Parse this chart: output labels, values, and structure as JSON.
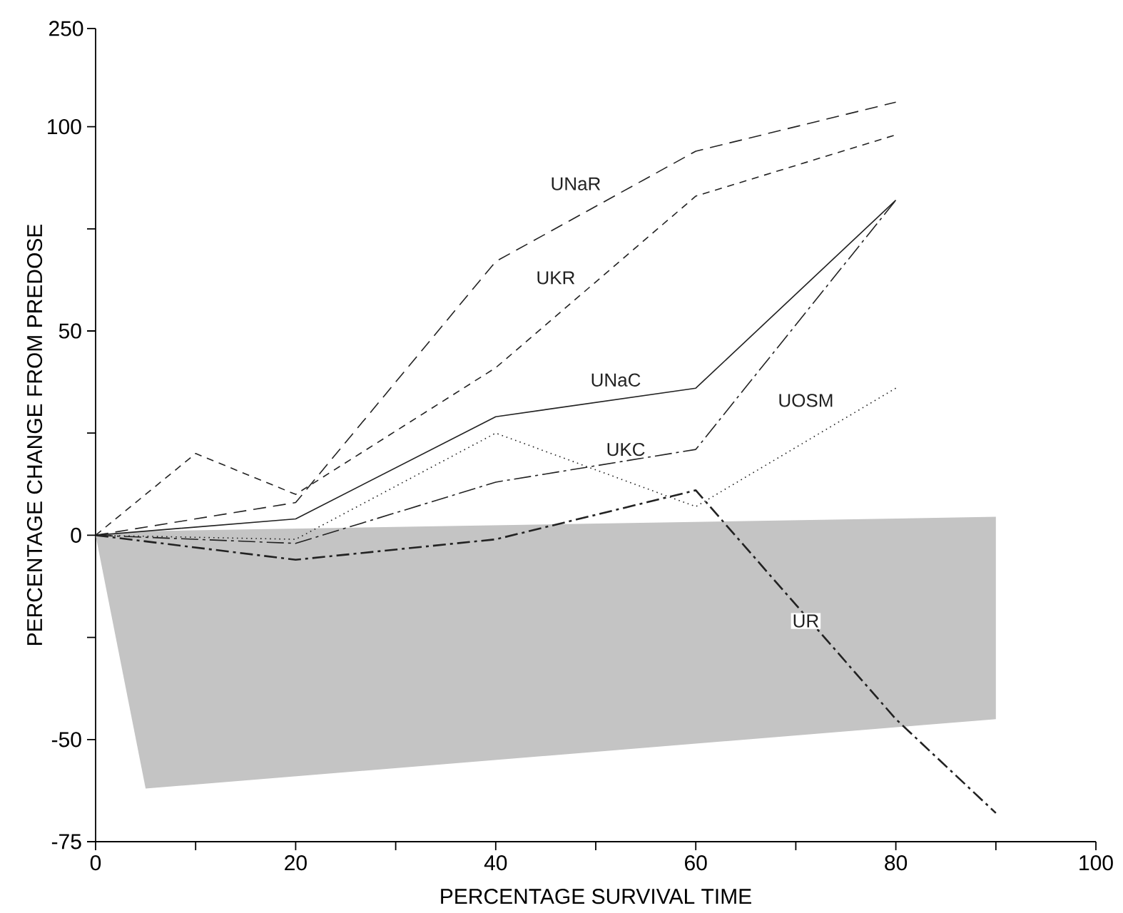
{
  "chart_data": [
    {
      "type": "other",
      "annotations": [
        "250"
      ]
    },
    {
      "type": "line",
      "xlabel": "PERCENTAGE SURVIVAL TIME",
      "ylabel": "PERCENTAGE CHANGE FROM PREDOSE",
      "xlim": [
        0,
        100
      ],
      "ylim": [
        -75,
        124
      ],
      "xticks": [
        0,
        {
          "value": 10,
          "label": null
        },
        20,
        {
          "value": 30,
          "label": null
        },
        40,
        {
          "value": 50,
          "label": null
        },
        60,
        {
          "value": 70,
          "label": null
        },
        80,
        {
          "value": 90,
          "label": null
        },
        100
      ],
      "yticks": [
        -75,
        -50,
        {
          "value": -25,
          "label": null
        },
        0,
        {
          "value": 25,
          "label": null
        },
        50,
        {
          "value": 75,
          "label": null
        },
        100
      ],
      "marker": "none",
      "series": [
        {
          "type": "area",
          "color": "#c4c4c4",
          "x": [
            0,
            5,
            90
          ],
          "lower": [
            0,
            -62,
            -45
          ],
          "upper": [
            0,
            1,
            4.5
          ],
          "values": [
            null,
            null,
            null
          ]
        },
        {
          "name": "UNaR",
          "color": "#222222",
          "line_style": "dashed",
          "x": [
            0,
            20,
            40,
            60,
            80
          ],
          "values": [
            0,
            8,
            67,
            94,
            106
          ]
        },
        {
          "name": "UKR",
          "color": "#222222",
          "line_style": "dashed",
          "x": [
            0,
            10,
            20,
            40,
            60,
            80
          ],
          "values": [
            0,
            20,
            10,
            41,
            83,
            98
          ]
        },
        {
          "name": "UNaC",
          "color": "#222222",
          "line_style": "solid",
          "x": [
            0,
            20,
            40,
            60,
            80
          ],
          "values": [
            0,
            4,
            29,
            36,
            82
          ]
        },
        {
          "name": "UKC",
          "color": "#222222",
          "line_style": "dashed",
          "x": [
            0,
            20,
            40,
            60,
            80
          ],
          "values": [
            0,
            -2,
            13,
            21,
            82
          ]
        },
        {
          "name": "UOSM",
          "color": "#222222",
          "line_style": "dotted",
          "x": [
            0,
            20,
            40,
            60,
            80
          ],
          "values": [
            0,
            -1,
            25,
            7,
            36
          ]
        },
        {
          "name": "UR",
          "color": "#222222",
          "line_style": "dashed",
          "x": [
            0,
            20,
            40,
            60,
            80,
            90
          ],
          "values": [
            0,
            -6,
            -1,
            11,
            -45,
            -68
          ]
        }
      ]
    }
  ]
}
